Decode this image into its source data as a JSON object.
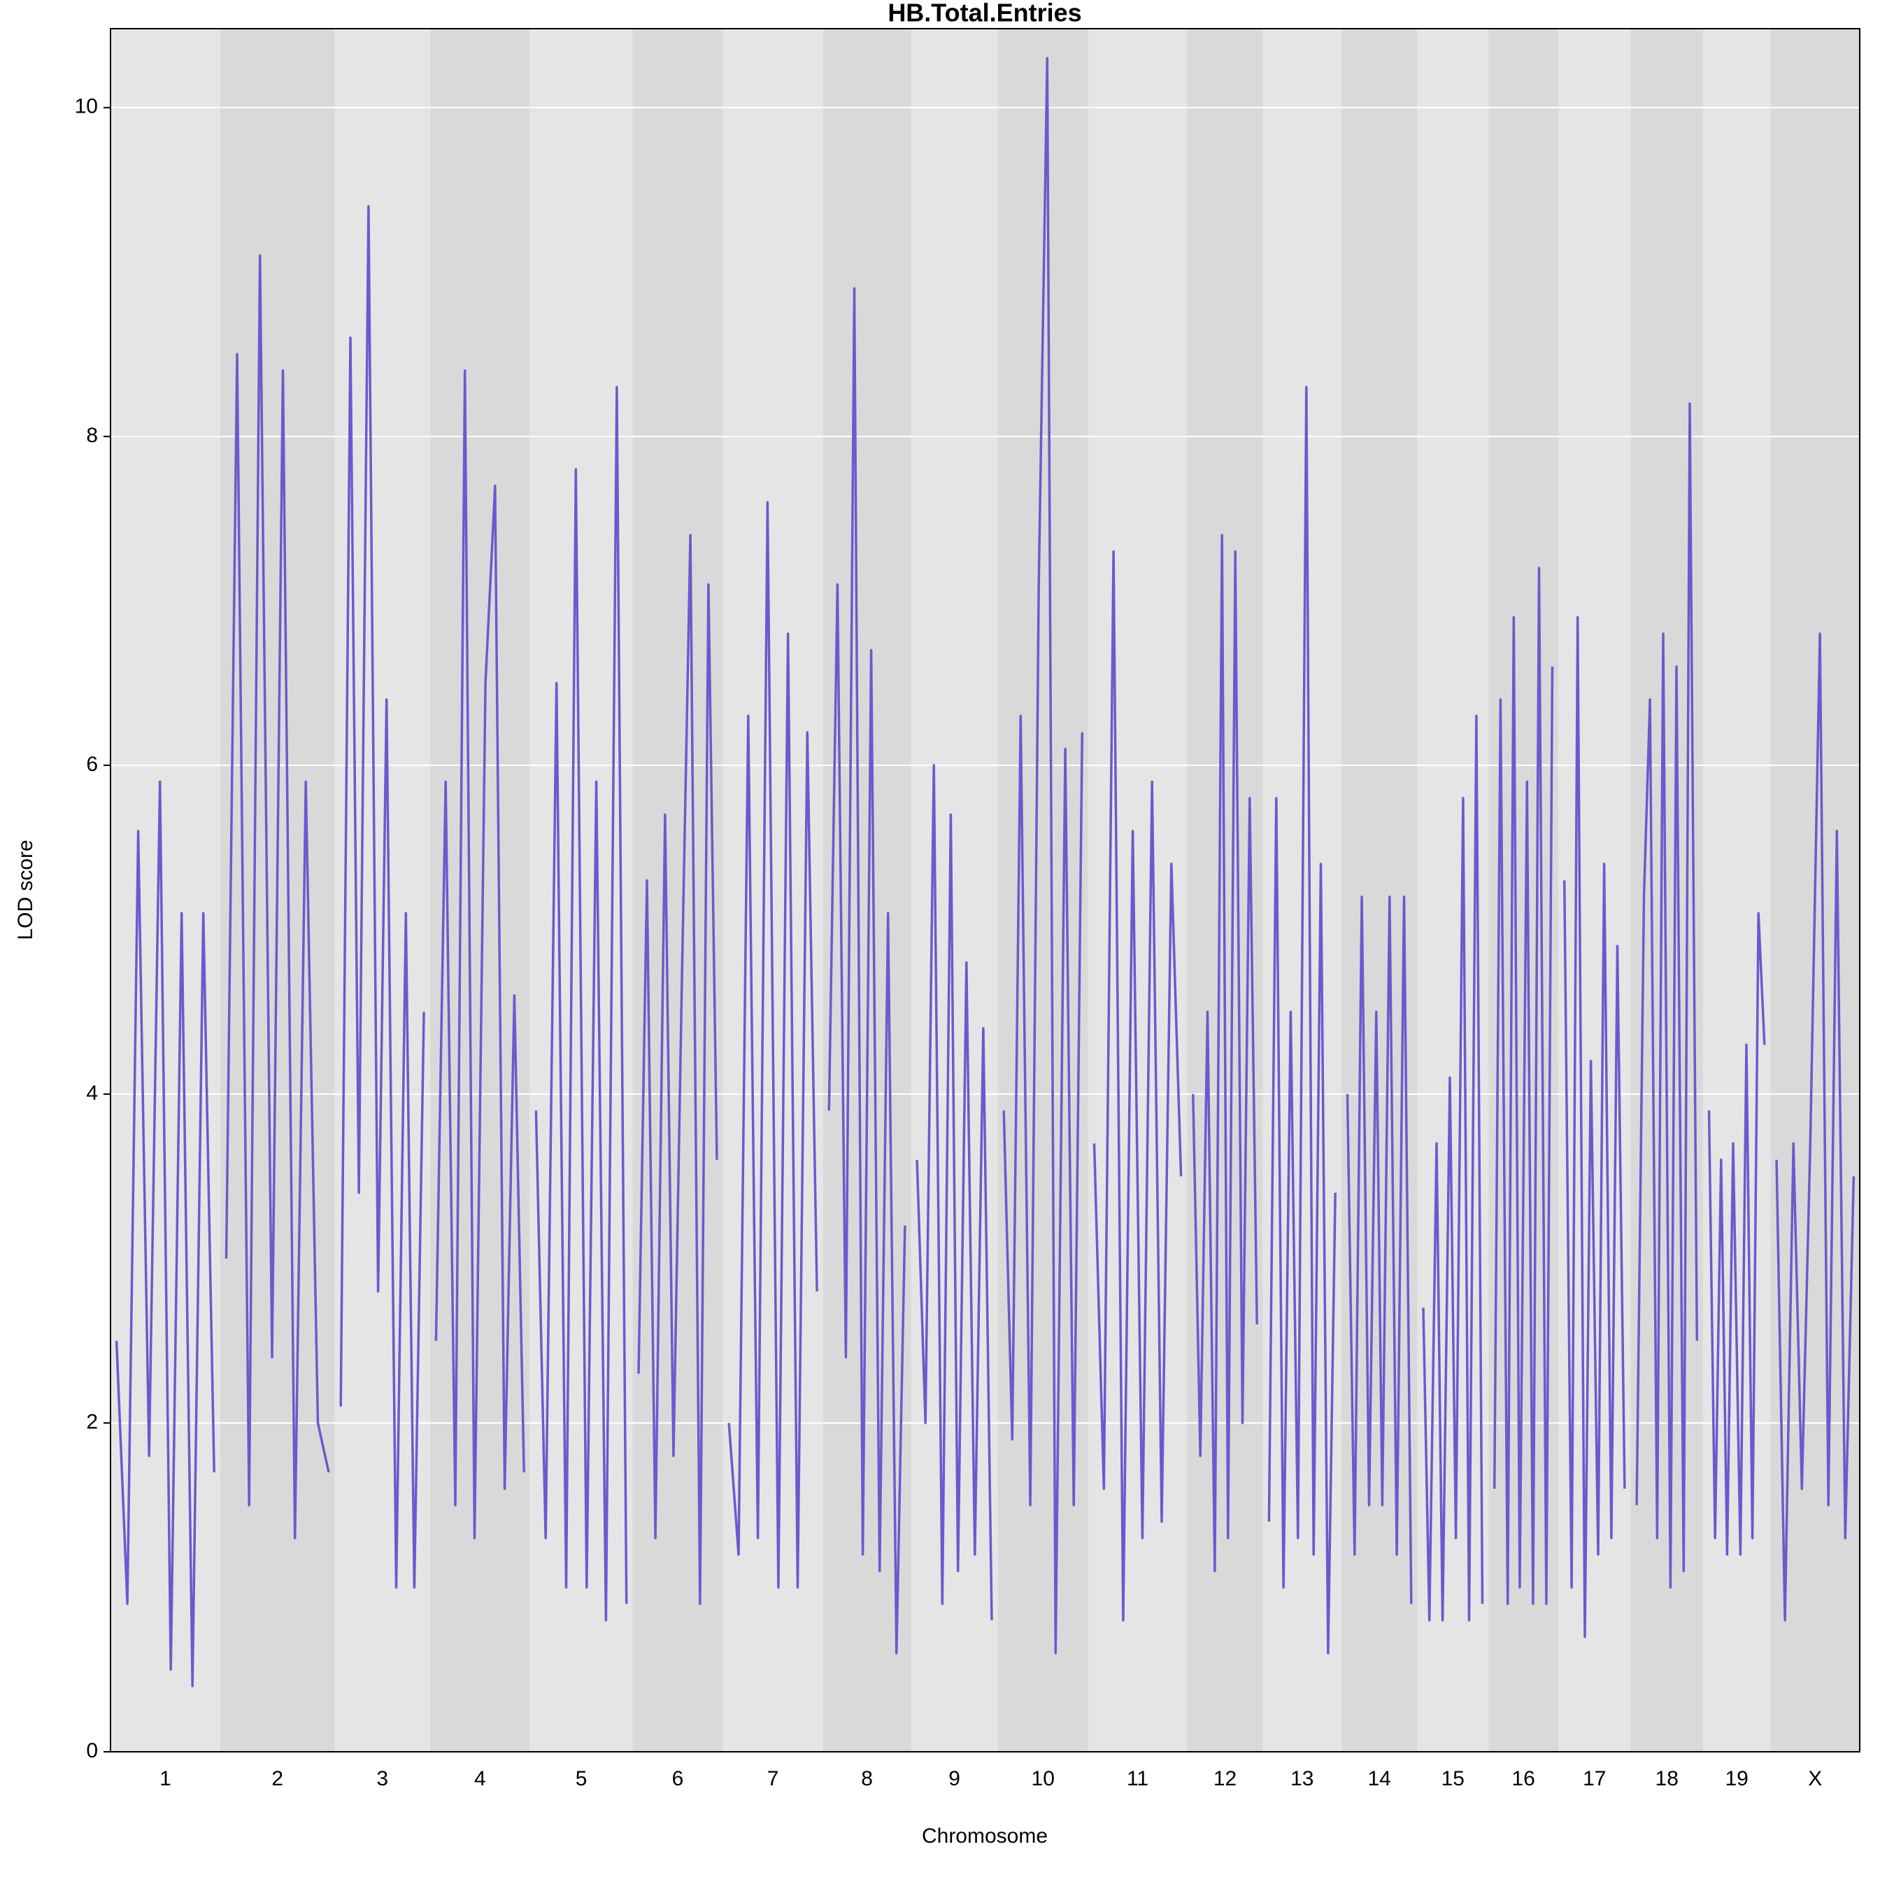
{
  "chart_data": {
    "type": "line",
    "title": "HB.Total.Entries",
    "x_label": "Chromosome",
    "y_label": "LOD score",
    "color": "#6a5acd",
    "ylim": [
      0,
      10.48
    ],
    "yticks": [
      0,
      2,
      4,
      6,
      8,
      10
    ],
    "grid": true,
    "chromosomes": [
      {
        "label": "1",
        "x": [
          0,
          9,
          18,
          27,
          36,
          45,
          54,
          63,
          72,
          81
        ],
        "values": [
          2.5,
          0.9,
          5.6,
          1.8,
          5.9,
          0.5,
          5.1,
          0.4,
          5.1,
          1.7
        ]
      },
      {
        "label": "2",
        "x": [
          0,
          9,
          19,
          28,
          38,
          47,
          57,
          66,
          76,
          85
        ],
        "values": [
          3.0,
          8.5,
          1.5,
          9.1,
          2.4,
          8.4,
          1.3,
          5.9,
          2.0,
          1.7
        ]
      },
      {
        "label": "3",
        "x": [
          0,
          8,
          15,
          23,
          31,
          38,
          46,
          54,
          61,
          69
        ],
        "values": [
          2.1,
          8.6,
          3.4,
          9.4,
          2.8,
          6.4,
          1.0,
          5.1,
          1.0,
          4.5
        ]
      },
      {
        "label": "4",
        "x": [
          0,
          8,
          16,
          24,
          32,
          41,
          49,
          57,
          65,
          73
        ],
        "values": [
          2.5,
          5.9,
          1.5,
          8.4,
          1.3,
          6.5,
          7.7,
          1.6,
          4.6,
          1.7
        ]
      },
      {
        "label": "5",
        "x": [
          0,
          8,
          17,
          25,
          33,
          42,
          50,
          58,
          67,
          75
        ],
        "values": [
          3.9,
          1.3,
          6.5,
          1.0,
          7.8,
          1.0,
          5.9,
          0.8,
          8.3,
          0.9
        ]
      },
      {
        "label": "6",
        "x": [
          0,
          7,
          14,
          22,
          29,
          36,
          43,
          51,
          58,
          65
        ],
        "values": [
          2.3,
          5.3,
          1.3,
          5.7,
          1.8,
          4.7,
          7.4,
          0.9,
          7.1,
          3.6
        ]
      },
      {
        "label": "7",
        "x": [
          0,
          8,
          16,
          24,
          32,
          41,
          49,
          57,
          65,
          73
        ],
        "values": [
          2.0,
          1.2,
          6.3,
          1.3,
          7.6,
          1.0,
          6.8,
          1.0,
          6.2,
          2.8
        ]
      },
      {
        "label": "8",
        "x": [
          0,
          7,
          14,
          21,
          28,
          35,
          42,
          49,
          56,
          63
        ],
        "values": [
          3.9,
          7.1,
          2.4,
          8.9,
          1.2,
          6.7,
          1.1,
          5.1,
          0.6,
          3.2
        ]
      },
      {
        "label": "9",
        "x": [
          0,
          7,
          14,
          21,
          28,
          34,
          41,
          48,
          55,
          62
        ],
        "values": [
          3.6,
          2.0,
          6.0,
          0.9,
          5.7,
          1.1,
          4.8,
          1.2,
          4.4,
          0.8
        ]
      },
      {
        "label": "10",
        "x": [
          0,
          7,
          14,
          22,
          29,
          36,
          43,
          51,
          58,
          65
        ],
        "values": [
          3.9,
          1.9,
          6.3,
          1.5,
          7.1,
          10.3,
          0.6,
          6.1,
          1.5,
          6.2
        ]
      },
      {
        "label": "11",
        "x": [
          0,
          8,
          16,
          24,
          32,
          40,
          48,
          56,
          64,
          72
        ],
        "values": [
          3.7,
          1.6,
          7.3,
          0.8,
          5.6,
          1.3,
          5.9,
          1.4,
          5.4,
          3.5
        ]
      },
      {
        "label": "12",
        "x": [
          0,
          6,
          12,
          18,
          24,
          29,
          35,
          41,
          47,
          53
        ],
        "values": [
          4.0,
          1.8,
          4.5,
          1.1,
          7.4,
          1.3,
          7.3,
          2.0,
          5.8,
          2.6
        ]
      },
      {
        "label": "13",
        "x": [
          0,
          6,
          12,
          18,
          24,
          31,
          37,
          43,
          49,
          55
        ],
        "values": [
          1.4,
          5.8,
          1.0,
          4.5,
          1.3,
          8.3,
          1.2,
          5.4,
          0.6,
          3.4
        ]
      },
      {
        "label": "14",
        "x": [
          0,
          6,
          12,
          18,
          24,
          29,
          35,
          41,
          47,
          53
        ],
        "values": [
          4.0,
          1.2,
          5.2,
          1.5,
          4.5,
          1.5,
          5.2,
          1.2,
          5.2,
          0.9
        ]
      },
      {
        "label": "15",
        "x": [
          0,
          5,
          11,
          16,
          22,
          27,
          33,
          38,
          44,
          49
        ],
        "values": [
          2.7,
          0.8,
          3.7,
          0.8,
          4.1,
          1.3,
          5.8,
          0.8,
          6.3,
          0.9
        ]
      },
      {
        "label": "16",
        "x": [
          0,
          5,
          11,
          16,
          21,
          27,
          32,
          37,
          43,
          48
        ],
        "values": [
          1.6,
          6.4,
          0.9,
          6.9,
          1.0,
          5.9,
          0.9,
          7.2,
          0.9,
          6.6
        ]
      },
      {
        "label": "17",
        "x": [
          0,
          6,
          11,
          17,
          22,
          28,
          33,
          39,
          44,
          50
        ],
        "values": [
          5.3,
          1.0,
          6.9,
          0.7,
          4.2,
          1.2,
          5.4,
          1.3,
          4.9,
          1.6
        ]
      },
      {
        "label": "18",
        "x": [
          0,
          6,
          11,
          17,
          22,
          28,
          33,
          39,
          44,
          50
        ],
        "values": [
          1.5,
          5.2,
          6.4,
          1.3,
          6.8,
          1.0,
          6.6,
          1.1,
          8.2,
          2.5
        ]
      },
      {
        "label": "19",
        "x": [
          0,
          5,
          10,
          15,
          20,
          26,
          31,
          36,
          41,
          46
        ],
        "values": [
          3.9,
          1.3,
          3.6,
          1.2,
          3.7,
          1.2,
          4.3,
          1.3,
          5.1,
          4.3
        ]
      },
      {
        "label": "X",
        "x": [
          0,
          7,
          14,
          21,
          28,
          36,
          43,
          50,
          57,
          64
        ],
        "values": [
          3.6,
          0.8,
          3.7,
          1.6,
          3.7,
          6.8,
          1.5,
          5.6,
          1.3,
          3.5
        ]
      }
    ]
  }
}
